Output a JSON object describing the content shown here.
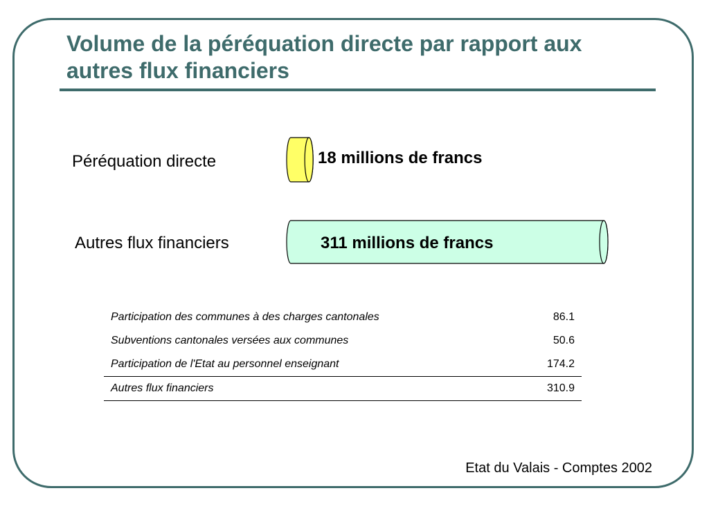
{
  "title": "Volume de la péréquation directe par rapport aux autres flux financiers",
  "chart_data": {
    "type": "bar",
    "orientation": "horizontal",
    "categories": [
      "Péréquation directe",
      "Autres flux financiers"
    ],
    "values": [
      18,
      311
    ],
    "value_labels": [
      "18 millions de francs",
      "311 millions de francs"
    ],
    "colors": [
      "#ffff66",
      "#ccffe6"
    ]
  },
  "table": {
    "rows": [
      {
        "label": "Participation des communes à des charges cantonales",
        "value": "86.1"
      },
      {
        "label": "Subventions cantonales versées aux communes",
        "value": "50.6"
      },
      {
        "label": "Participation de l'Etat au personnel enseignant",
        "value": "174.2"
      }
    ],
    "total": {
      "label": "Autres flux financiers",
      "value": "310.9"
    }
  },
  "source": "Etat du Valais - Comptes 2002"
}
